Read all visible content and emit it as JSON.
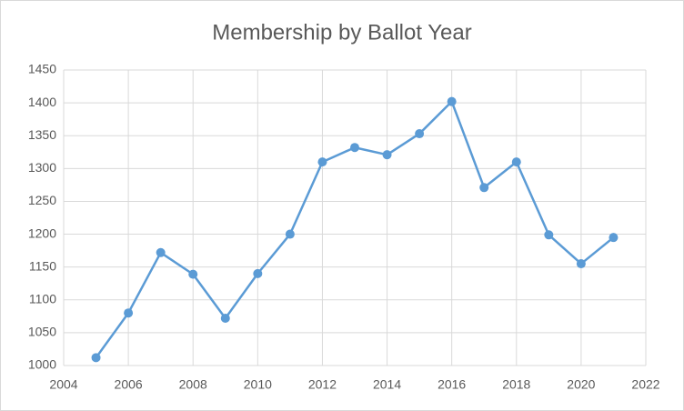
{
  "chart_data": {
    "type": "line",
    "title": "Membership by Ballot Year",
    "x": [
      2005,
      2006,
      2007,
      2008,
      2009,
      2010,
      2011,
      2012,
      2013,
      2014,
      2015,
      2016,
      2017,
      2018,
      2019,
      2020,
      2021
    ],
    "values": [
      1012,
      1080,
      1172,
      1139,
      1072,
      1140,
      1200,
      1310,
      1332,
      1321,
      1353,
      1402,
      1271,
      1310,
      1199,
      1155,
      1195
    ],
    "color": "#5b9bd5",
    "xlim": [
      2004,
      2022
    ],
    "xticks": [
      2004,
      2006,
      2008,
      2010,
      2012,
      2014,
      2016,
      2018,
      2020,
      2022
    ],
    "ylim": [
      1000,
      1450
    ],
    "yticks": [
      1000,
      1050,
      1100,
      1150,
      1200,
      1250,
      1300,
      1350,
      1400,
      1450
    ],
    "grid": true
  }
}
